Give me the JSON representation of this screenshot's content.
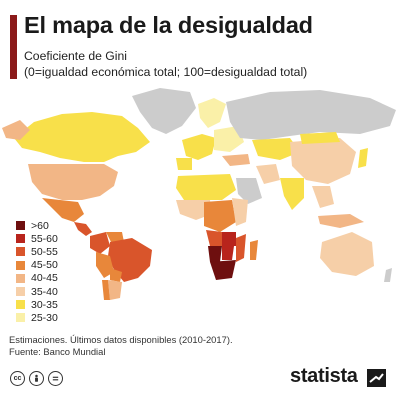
{
  "header": {
    "title": "El mapa de la desigualdad",
    "subtitle_line1": "Coeficiente de Gini",
    "subtitle_line2": "(0=igualdad económica total; 100=desigualdad total)"
  },
  "legend": {
    "items": [
      {
        "label": ">60",
        "color": "#6e0f0f"
      },
      {
        "label": "55-60",
        "color": "#b8241c"
      },
      {
        "label": "50-55",
        "color": "#d9552b"
      },
      {
        "label": "45-50",
        "color": "#e8873a"
      },
      {
        "label": "40-45",
        "color": "#f2b686"
      },
      {
        "label": "35-40",
        "color": "#f6cfa8"
      },
      {
        "label": "30-35",
        "color": "#f8e04a"
      },
      {
        "label": "25-30",
        "color": "#faf0a8"
      }
    ],
    "no_data_color": "#cccccc"
  },
  "footer": {
    "note": "Estimaciones. Últimos datos disponibles (2010-2017).",
    "source": "Fuente: Banco Mundial",
    "brand": "statista",
    "license_icons": [
      "cc-icon",
      "person-icon",
      "equal-icon"
    ]
  }
}
